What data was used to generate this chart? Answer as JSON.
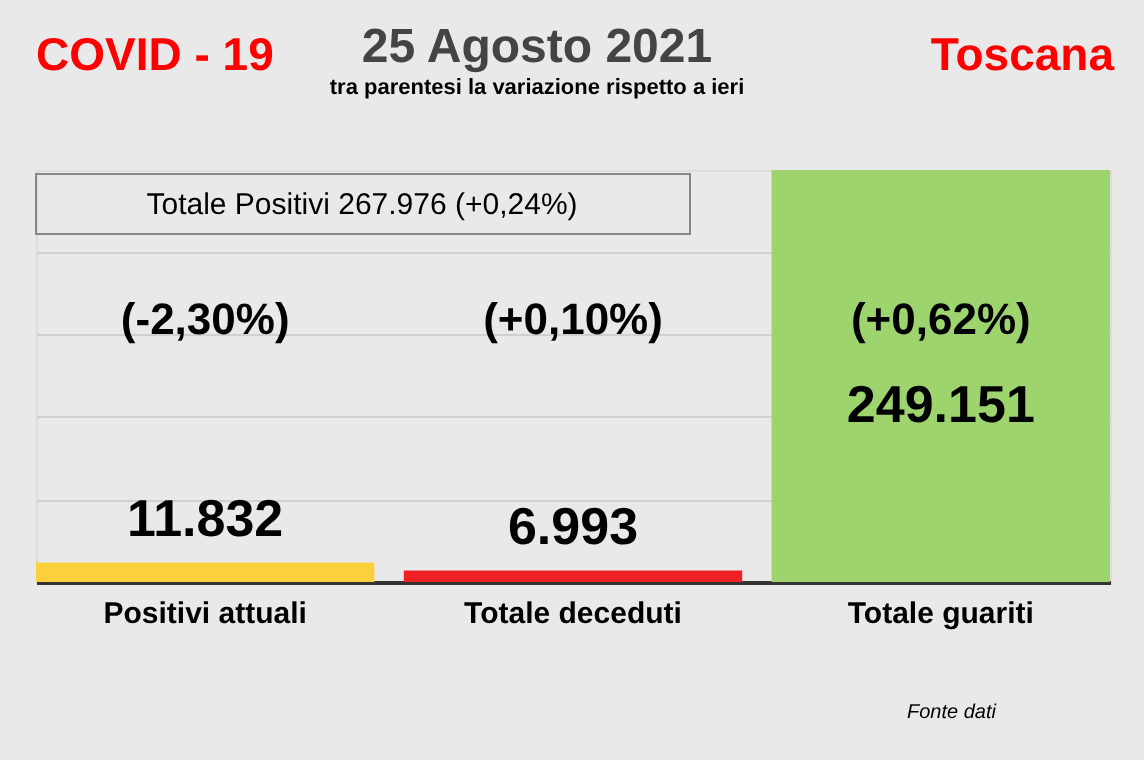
{
  "chart_data": {
    "type": "bar",
    "title": "25 Agosto 2021",
    "subtitle": "tra parentesi la variazione rispetto a ieri",
    "categories": [
      "Positivi attuali",
      "Totale deceduti",
      "Totale guariti"
    ],
    "values": [
      11832,
      6993,
      249151
    ],
    "colors": [
      "#fccf3d",
      "#ee2024",
      "#9ed46e"
    ],
    "ylim": [
      0,
      249151
    ],
    "value_labels": [
      "11.832",
      "6.993",
      "249.151"
    ],
    "grid": "y",
    "tick_labels": "x",
    "annotations": [
      "(-2,30%)",
      "(+0,10%)",
      "(+0,62%)",
      "COVID - 19",
      "Toscana",
      "Totale Positivi    267.976 (+0,24%)",
      "Fonte dati"
    ]
  }
}
